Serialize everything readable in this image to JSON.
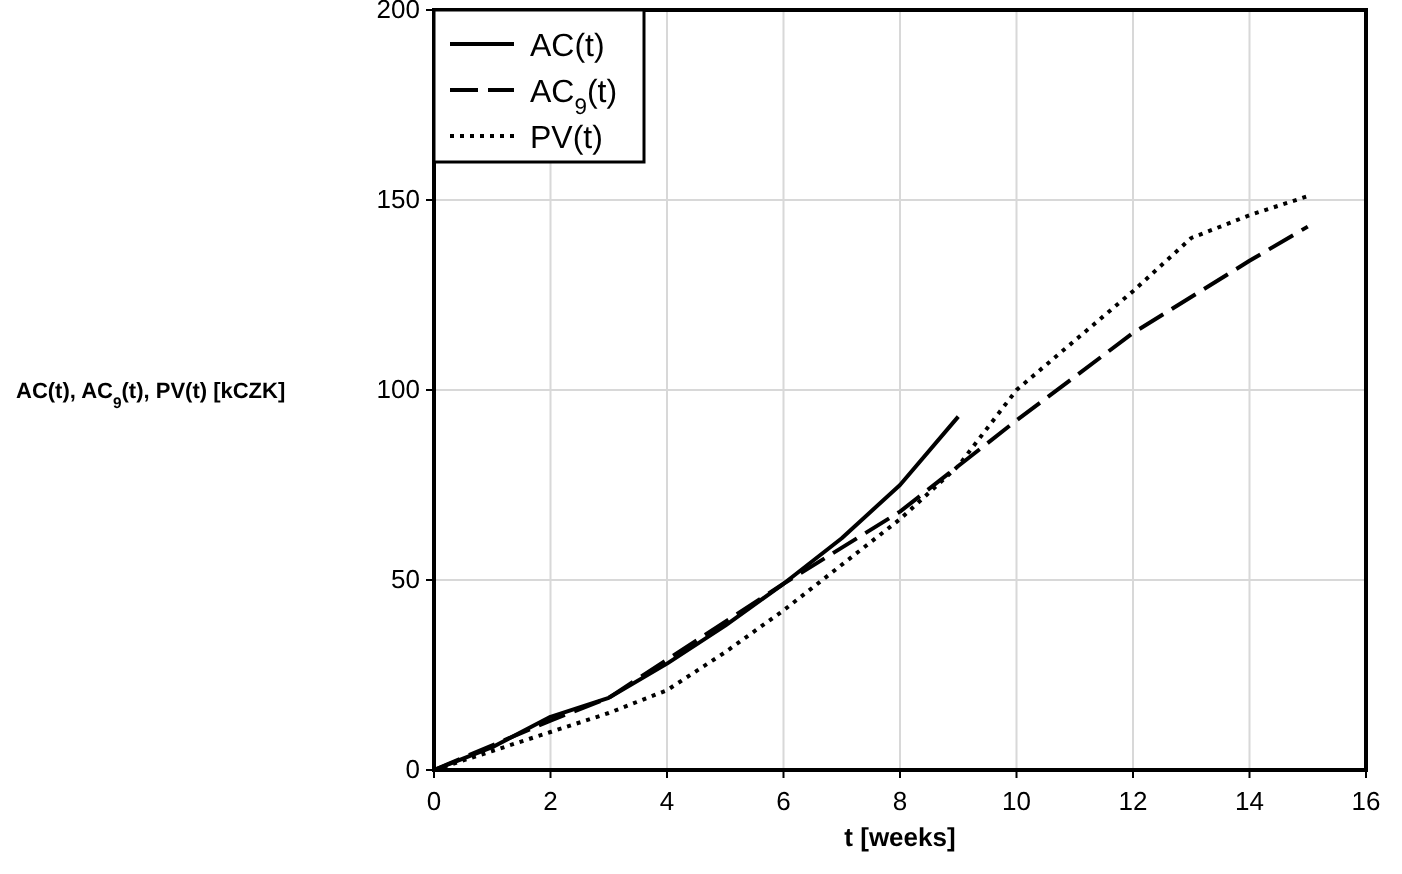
{
  "chart_data": {
    "type": "line",
    "xlabel": "t [weeks]",
    "ylabel": "AC(t), AC$_{9}$(t), PV(t) [kCZK]",
    "xlim": [
      0,
      16
    ],
    "xticks": [
      0,
      2,
      4,
      6,
      8,
      10,
      12,
      14,
      16
    ],
    "ylim": [
      0,
      200
    ],
    "yticks": [
      0,
      50,
      100,
      150,
      200
    ],
    "grid": true,
    "legend": "top left",
    "series": [
      {
        "name": "AC(t)",
        "color": "#000000",
        "line_style": "solid",
        "x": [
          0,
          1,
          2,
          3,
          4,
          5,
          6,
          7,
          8,
          9
        ],
        "values": [
          0,
          6,
          14,
          19,
          28,
          38,
          49,
          61,
          75,
          93
        ]
      },
      {
        "name": "AC$_{9}$(t)",
        "color": "#000000",
        "line_style": "dashed",
        "x": [
          0,
          2,
          3,
          4,
          6,
          8,
          10,
          12,
          14,
          15
        ],
        "values": [
          0,
          13,
          19,
          29,
          49,
          68,
          92,
          115,
          134,
          143
        ]
      },
      {
        "name": "PV(t)",
        "color": "#000000",
        "line_style": "dotted",
        "x": [
          0,
          1,
          2,
          3,
          4,
          5,
          6,
          7,
          8,
          9,
          10,
          11,
          12,
          13,
          14,
          15
        ],
        "values": [
          0,
          5,
          10,
          15,
          21,
          31,
          42,
          54,
          66,
          80,
          100,
          113,
          126,
          140,
          146,
          151
        ]
      }
    ]
  }
}
